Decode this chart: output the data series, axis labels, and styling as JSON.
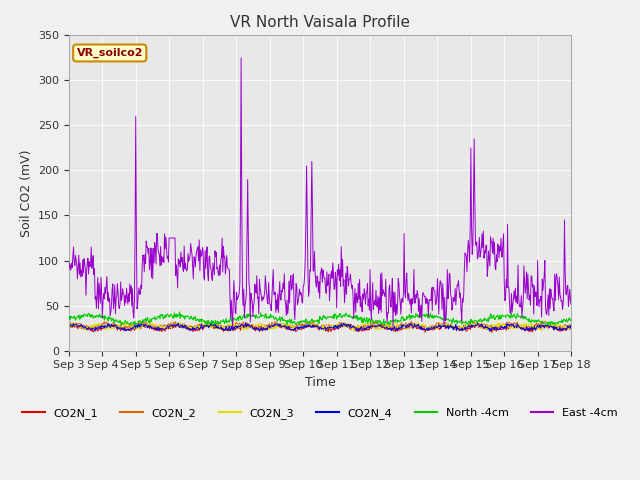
{
  "title": "VR North Vaisala Profile",
  "xlabel": "Time",
  "ylabel": "Soil CO2 (mV)",
  "annotation": "VR_soilco2",
  "ylim": [
    0,
    350
  ],
  "xlim": [
    0,
    15
  ],
  "xtick_labels": [
    "Sep 3",
    "Sep 4",
    "Sep 5",
    "Sep 6",
    "Sep 7",
    "Sep 8",
    "Sep 9",
    "Sep 10",
    "Sep 11",
    "Sep 12",
    "Sep 13",
    "Sep 14",
    "Sep 15",
    "Sep 16",
    "Sep 17",
    "Sep 18"
  ],
  "ytick_vals": [
    0,
    50,
    100,
    150,
    200,
    250,
    300,
    350
  ],
  "bg_color": "#f0f0f0",
  "plot_bg": "#e8e8e8",
  "line_colors": {
    "CO2N_1": "#dd0000",
    "CO2N_2": "#dd6600",
    "CO2N_3": "#dddd00",
    "CO2N_4": "#0000dd",
    "North_4cm": "#00cc00",
    "East_4cm": "#9900cc"
  },
  "legend_labels": [
    "CO2N_1",
    "CO2N_2",
    "CO2N_3",
    "CO2N_4",
    "North -4cm",
    "East -4cm"
  ],
  "title_fontsize": 11,
  "label_fontsize": 9,
  "tick_fontsize": 8,
  "annot_fontsize": 8
}
